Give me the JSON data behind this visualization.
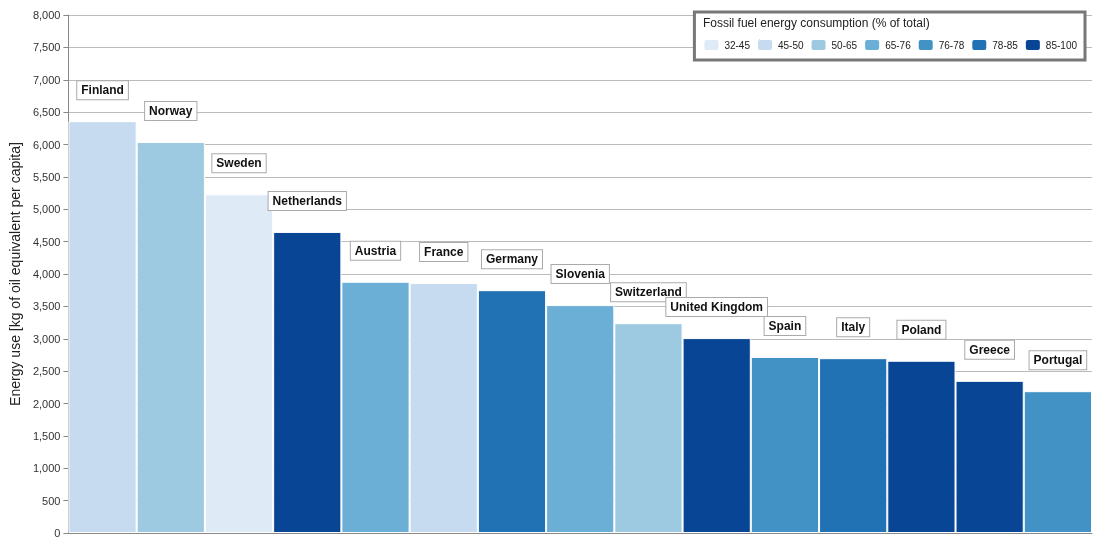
{
  "chart_data": {
    "type": "bar",
    "ylabel": "Energy use [kg of oil equivalent per capita]",
    "legend_title": "Fossil fuel energy consumption (% of total)",
    "categories": [
      "Finland",
      "Norway",
      "Sweden",
      "Netherlands",
      "Austria",
      "France",
      "Germany",
      "Slovenia",
      "Switzerland",
      "United Kingdom",
      "Spain",
      "Italy",
      "Poland",
      "Greece",
      "Portugal"
    ],
    "stacked": true,
    "series": [
      {
        "name": "32-45",
        "color": "#deebf7",
        "values": [
          null,
          null,
          5230,
          null,
          null,
          null,
          null,
          null,
          null,
          null,
          null,
          null,
          null,
          null,
          null
        ]
      },
      {
        "name": "45-50",
        "color": "#c6dbef",
        "values": [
          6360,
          null,
          null,
          null,
          null,
          3860,
          null,
          null,
          null,
          null,
          null,
          null,
          null,
          null,
          null
        ]
      },
      {
        "name": "50-65",
        "color": "#9ecae1",
        "values": [
          null,
          6040,
          null,
          null,
          null,
          null,
          null,
          null,
          3240,
          null,
          null,
          null,
          null,
          null,
          null
        ]
      },
      {
        "name": "65-76",
        "color": "#6baed6",
        "values": [
          null,
          null,
          null,
          null,
          3880,
          null,
          null,
          3520,
          null,
          null,
          null,
          null,
          null,
          null,
          null
        ]
      },
      {
        "name": "76-78",
        "color": "#4292c6",
        "values": [
          null,
          null,
          null,
          null,
          null,
          null,
          null,
          null,
          null,
          null,
          2720,
          null,
          null,
          null,
          2190
        ]
      },
      {
        "name": "78-85",
        "color": "#2171b5",
        "values": [
          null,
          null,
          null,
          null,
          null,
          null,
          3750,
          null,
          null,
          null,
          null,
          2700,
          null,
          null,
          null
        ]
      },
      {
        "name": "85-100",
        "color": "#084594",
        "values": [
          null,
          null,
          null,
          4650,
          null,
          null,
          null,
          null,
          null,
          3010,
          null,
          null,
          2660,
          2350,
          null
        ]
      }
    ],
    "ylim": [
      0,
      8000
    ],
    "yticks": [
      0,
      500,
      {
        "value": 1000,
        "label": "1,000"
      },
      {
        "value": 1500,
        "label": "1,500"
      },
      {
        "value": 2000,
        "label": "2,000"
      },
      {
        "value": 2500,
        "label": "2,500"
      },
      {
        "value": 3000,
        "label": "3,000"
      },
      {
        "value": 3500,
        "label": "3,500"
      },
      {
        "value": 4000,
        "label": "4,000"
      },
      {
        "value": 4500,
        "label": "4,500"
      },
      {
        "value": 5000,
        "label": "5,000"
      },
      {
        "value": 5500,
        "label": "5,500"
      },
      {
        "value": 6000,
        "label": "6,000"
      },
      {
        "value": 6500,
        "label": "6,500"
      },
      {
        "value": 7000,
        "label": "7,000"
      },
      {
        "value": 7500,
        "label": "7,500"
      },
      {
        "value": 8000,
        "label": "8,000"
      }
    ],
    "grid": "y",
    "legend": "top right"
  }
}
